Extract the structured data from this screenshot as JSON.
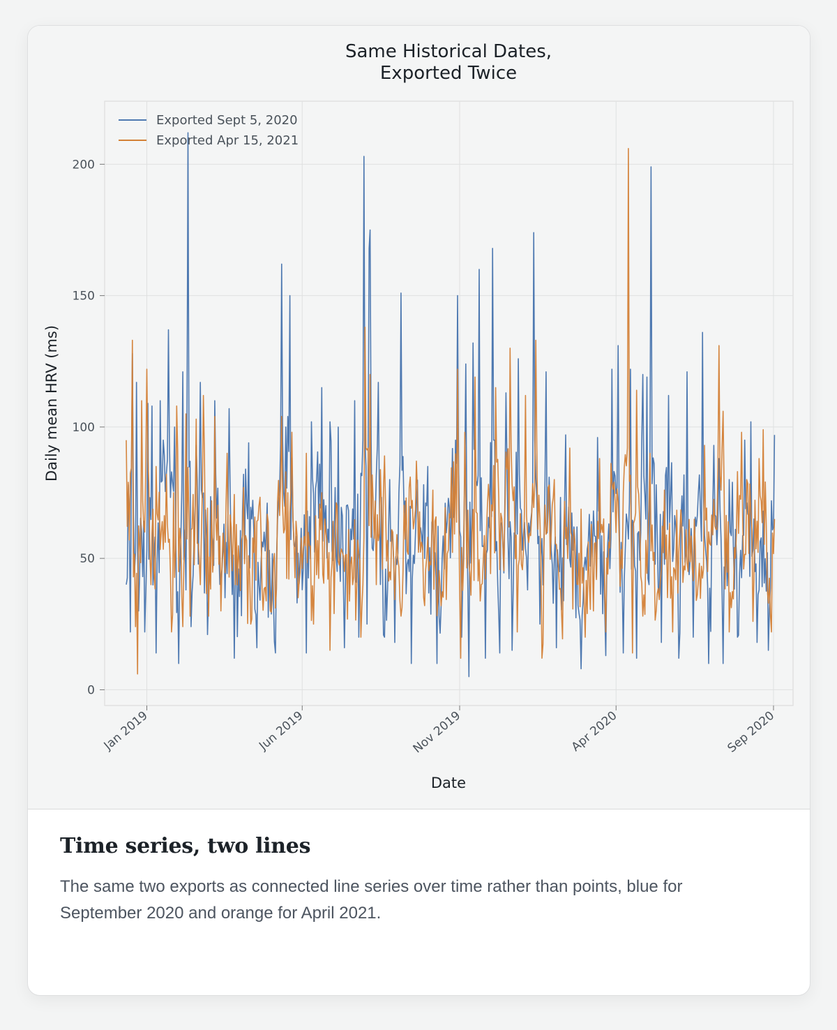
{
  "card": {
    "heading": "Time series, two lines",
    "description": "The same two exports as connected line series over time rather than points, blue for September 2020 and orange for April 2021."
  },
  "chart_data": {
    "type": "line",
    "title_lines": [
      "Same Historical Dates,",
      "Exported Twice"
    ],
    "xlabel": "Date",
    "ylabel": "Daily mean HRV (ms)",
    "x_type": "date",
    "xlim": [
      "2018-11-21",
      "2020-09-20"
    ],
    "ylim": [
      -6,
      224
    ],
    "yticks": [
      0,
      50,
      100,
      150,
      200
    ],
    "xticks": [
      {
        "date": "2019-01-01",
        "label": "Jan 2019"
      },
      {
        "date": "2019-06-01",
        "label": "Jun 2019"
      },
      {
        "date": "2019-11-01",
        "label": "Nov 2019"
      },
      {
        "date": "2020-04-01",
        "label": "Apr 2020"
      },
      {
        "date": "2020-09-01",
        "label": "Sep 2020"
      }
    ],
    "grid": true,
    "legend_position": "top-left",
    "start_date": "2018-12-12",
    "end_date": "2020-09-02",
    "series": [
      {
        "name": "Exported Sept 5, 2020",
        "color": "#4e79b1",
        "anchors": [
          [
            "2018-12-12",
            40
          ],
          [
            "2018-12-14",
            78
          ],
          [
            "2018-12-16",
            22
          ],
          [
            "2018-12-18",
            128
          ],
          [
            "2018-12-20",
            45
          ],
          [
            "2018-12-22",
            117
          ],
          [
            "2018-12-24",
            30
          ],
          [
            "2018-12-27",
            60
          ],
          [
            "2018-12-30",
            22
          ],
          [
            "2019-01-02",
            109
          ],
          [
            "2019-01-06",
            108
          ],
          [
            "2019-01-10",
            14
          ],
          [
            "2019-01-14",
            110
          ],
          [
            "2019-01-22",
            137
          ],
          [
            "2019-01-28",
            100
          ],
          [
            "2019-02-01",
            10
          ],
          [
            "2019-02-05",
            121
          ],
          [
            "2019-02-08",
            38
          ],
          [
            "2019-02-10",
            212
          ],
          [
            "2019-02-13",
            24
          ],
          [
            "2019-02-18",
            93
          ],
          [
            "2019-02-22",
            117
          ],
          [
            "2019-03-01",
            21
          ],
          [
            "2019-03-08",
            110
          ],
          [
            "2019-03-18",
            35
          ],
          [
            "2019-03-22",
            107
          ],
          [
            "2019-03-27",
            12
          ],
          [
            "2019-04-05",
            82
          ],
          [
            "2019-04-10",
            94
          ],
          [
            "2019-04-18",
            16
          ],
          [
            "2019-04-25",
            60
          ],
          [
            "2019-05-01",
            40
          ],
          [
            "2019-05-06",
            14
          ],
          [
            "2019-05-12",
            162
          ],
          [
            "2019-05-16",
            100
          ],
          [
            "2019-05-18",
            104
          ],
          [
            "2019-05-20",
            150
          ],
          [
            "2019-05-24",
            55
          ],
          [
            "2019-06-05",
            14
          ],
          [
            "2019-06-10",
            102
          ],
          [
            "2019-06-20",
            115
          ],
          [
            "2019-06-28",
            102
          ],
          [
            "2019-07-06",
            100
          ],
          [
            "2019-07-12",
            16
          ],
          [
            "2019-07-22",
            110
          ],
          [
            "2019-07-26",
            20
          ],
          [
            "2019-07-31",
            203
          ],
          [
            "2019-08-03",
            25
          ],
          [
            "2019-08-05",
            168
          ],
          [
            "2019-08-06",
            175
          ],
          [
            "2019-08-10",
            60
          ],
          [
            "2019-08-14",
            117
          ],
          [
            "2019-08-20",
            20
          ],
          [
            "2019-08-25",
            80
          ],
          [
            "2019-08-30",
            18
          ],
          [
            "2019-09-05",
            151
          ],
          [
            "2019-09-15",
            10
          ],
          [
            "2019-09-20",
            70
          ],
          [
            "2019-10-01",
            85
          ],
          [
            "2019-10-10",
            10
          ],
          [
            "2019-10-18",
            71
          ],
          [
            "2019-10-30",
            150
          ],
          [
            "2019-11-03",
            20
          ],
          [
            "2019-11-07",
            124
          ],
          [
            "2019-11-10",
            5
          ],
          [
            "2019-11-14",
            132
          ],
          [
            "2019-11-20",
            160
          ],
          [
            "2019-11-26",
            12
          ],
          [
            "2019-12-03",
            168
          ],
          [
            "2019-12-10",
            14
          ],
          [
            "2019-12-16",
            113
          ],
          [
            "2019-12-22",
            15
          ],
          [
            "2019-12-28",
            126
          ],
          [
            "2020-01-06",
            38
          ],
          [
            "2020-01-12",
            174
          ],
          [
            "2020-01-18",
            25
          ],
          [
            "2020-01-24",
            121
          ],
          [
            "2020-02-03",
            16
          ],
          [
            "2020-02-12",
            97
          ],
          [
            "2020-02-20",
            62
          ],
          [
            "2020-02-27",
            8
          ],
          [
            "2020-03-08",
            64
          ],
          [
            "2020-03-14",
            96
          ],
          [
            "2020-03-22",
            13
          ],
          [
            "2020-03-28",
            122
          ],
          [
            "2020-04-03",
            131
          ],
          [
            "2020-04-08",
            14
          ],
          [
            "2020-04-15",
            122
          ],
          [
            "2020-04-21",
            12
          ],
          [
            "2020-04-27",
            120
          ],
          [
            "2020-05-01",
            119
          ],
          [
            "2020-05-03",
            40
          ],
          [
            "2020-05-05",
            199
          ],
          [
            "2020-05-10",
            78
          ],
          [
            "2020-05-15",
            18
          ],
          [
            "2020-05-22",
            112
          ],
          [
            "2020-06-01",
            12
          ],
          [
            "2020-06-09",
            121
          ],
          [
            "2020-06-15",
            20
          ],
          [
            "2020-06-24",
            136
          ],
          [
            "2020-06-30",
            10
          ],
          [
            "2020-07-05",
            93
          ],
          [
            "2020-07-10",
            88
          ],
          [
            "2020-07-14",
            10
          ],
          [
            "2020-07-20",
            80
          ],
          [
            "2020-07-28",
            20
          ],
          [
            "2020-08-04",
            95
          ],
          [
            "2020-08-10",
            102
          ],
          [
            "2020-08-16",
            18
          ],
          [
            "2020-08-22",
            68
          ],
          [
            "2020-08-27",
            15
          ],
          [
            "2020-09-02",
            97
          ]
        ]
      },
      {
        "name": "Exported Apr 15, 2021",
        "color": "#d38036",
        "anchors": [
          [
            "2018-12-12",
            95
          ],
          [
            "2018-12-15",
            57
          ],
          [
            "2018-12-18",
            133
          ],
          [
            "2018-12-21",
            24
          ],
          [
            "2018-12-23",
            6
          ],
          [
            "2018-12-27",
            110
          ],
          [
            "2018-12-30",
            60
          ],
          [
            "2019-01-01",
            122
          ],
          [
            "2019-01-05",
            40
          ],
          [
            "2019-01-10",
            85
          ],
          [
            "2019-01-15",
            60
          ],
          [
            "2019-01-20",
            82
          ],
          [
            "2019-01-25",
            22
          ],
          [
            "2019-01-30",
            108
          ],
          [
            "2019-02-05",
            24
          ],
          [
            "2019-02-08",
            105
          ],
          [
            "2019-02-12",
            28
          ],
          [
            "2019-02-18",
            103
          ],
          [
            "2019-02-22",
            40
          ],
          [
            "2019-02-25",
            112
          ],
          [
            "2019-03-02",
            28
          ],
          [
            "2019-03-08",
            104
          ],
          [
            "2019-03-14",
            30
          ],
          [
            "2019-03-20",
            90
          ],
          [
            "2019-03-28",
            40
          ],
          [
            "2019-04-05",
            77
          ],
          [
            "2019-04-12",
            25
          ],
          [
            "2019-04-20",
            70
          ],
          [
            "2019-05-01",
            30
          ],
          [
            "2019-05-12",
            104
          ],
          [
            "2019-05-18",
            75
          ],
          [
            "2019-05-22",
            98
          ],
          [
            "2019-05-28",
            35
          ],
          [
            "2019-06-05",
            90
          ],
          [
            "2019-06-12",
            25
          ],
          [
            "2019-06-20",
            75
          ],
          [
            "2019-06-28",
            15
          ],
          [
            "2019-07-05",
            70
          ],
          [
            "2019-07-12",
            45
          ],
          [
            "2019-07-20",
            40
          ],
          [
            "2019-07-28",
            20
          ],
          [
            "2019-08-01",
            138
          ],
          [
            "2019-08-06",
            120
          ],
          [
            "2019-08-12",
            40
          ],
          [
            "2019-08-20",
            89
          ],
          [
            "2019-08-28",
            60
          ],
          [
            "2019-09-05",
            28
          ],
          [
            "2019-09-10",
            73
          ],
          [
            "2019-09-20",
            87
          ],
          [
            "2019-09-28",
            32
          ],
          [
            "2019-10-06",
            76
          ],
          [
            "2019-10-14",
            32
          ],
          [
            "2019-10-22",
            67
          ],
          [
            "2019-10-30",
            122
          ],
          [
            "2019-11-02",
            12
          ],
          [
            "2019-11-06",
            98
          ],
          [
            "2019-11-12",
            36
          ],
          [
            "2019-11-16",
            119
          ],
          [
            "2019-11-22",
            40
          ],
          [
            "2019-11-28",
            70
          ],
          [
            "2019-12-06",
            115
          ],
          [
            "2019-12-12",
            65
          ],
          [
            "2019-12-20",
            130
          ],
          [
            "2019-12-27",
            22
          ],
          [
            "2020-01-04",
            112
          ],
          [
            "2020-01-14",
            133
          ],
          [
            "2020-01-20",
            12
          ],
          [
            "2020-01-26",
            77
          ],
          [
            "2020-02-01",
            80
          ],
          [
            "2020-02-08",
            30
          ],
          [
            "2020-02-16",
            92
          ],
          [
            "2020-02-24",
            40
          ],
          [
            "2020-03-02",
            20
          ],
          [
            "2020-03-10",
            30
          ],
          [
            "2020-03-16",
            88
          ],
          [
            "2020-03-22",
            22
          ],
          [
            "2020-03-28",
            79
          ],
          [
            "2020-04-04",
            58
          ],
          [
            "2020-04-08",
            75
          ],
          [
            "2020-04-13",
            206
          ],
          [
            "2020-04-17",
            14
          ],
          [
            "2020-04-21",
            114
          ],
          [
            "2020-04-27",
            28
          ],
          [
            "2020-05-04",
            90
          ],
          [
            "2020-05-10",
            30
          ],
          [
            "2020-05-18",
            76
          ],
          [
            "2020-05-26",
            22
          ],
          [
            "2020-06-02",
            60
          ],
          [
            "2020-06-10",
            45
          ],
          [
            "2020-06-18",
            34
          ],
          [
            "2020-06-26",
            93
          ],
          [
            "2020-07-02",
            55
          ],
          [
            "2020-07-10",
            131
          ],
          [
            "2020-07-14",
            106
          ],
          [
            "2020-07-20",
            22
          ],
          [
            "2020-07-26",
            50
          ],
          [
            "2020-08-01",
            98
          ],
          [
            "2020-08-06",
            80
          ],
          [
            "2020-08-12",
            26
          ],
          [
            "2020-08-18",
            88
          ],
          [
            "2020-08-22",
            99
          ],
          [
            "2020-08-26",
            38
          ],
          [
            "2020-08-30",
            22
          ],
          [
            "2020-09-02",
            65
          ]
        ]
      }
    ]
  }
}
